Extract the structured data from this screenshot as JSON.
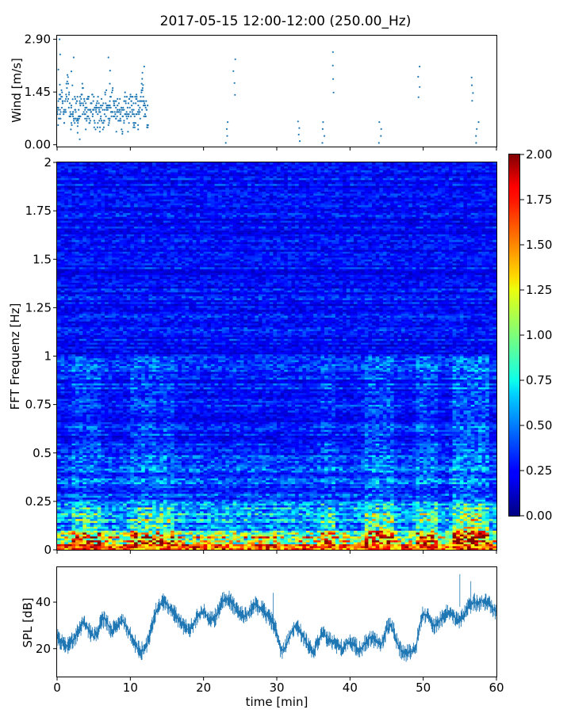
{
  "title": "2017-05-15 12:00-12:00 (250.00_Hz)",
  "chart_data": [
    {
      "type": "scatter",
      "name": "wind",
      "ylabel": "Wind [m/s]",
      "xlim": [
        0,
        60
      ],
      "ylim": [
        -0.05,
        3.0
      ],
      "yticks": [
        0.0,
        1.45,
        2.9
      ],
      "ytick_labels": [
        "0.00",
        "1.45",
        "2.90"
      ],
      "x_start": 0,
      "x_step": 0.1,
      "shape": [
        0.75,
        0.8,
        0.95,
        1.05,
        1.0,
        1.0,
        1.1,
        1.15,
        1.05,
        0.95,
        0.8,
        0.95,
        1.3,
        1.55,
        1.6,
        1.45,
        1.3,
        1.15,
        1.0,
        0.85,
        0.75,
        0.7,
        0.75,
        0.85,
        0.95,
        1.0,
        1.05,
        1.0,
        0.95,
        0.9,
        0.95,
        1.0,
        1.1,
        1.2,
        1.3,
        1.25,
        1.15,
        1.0,
        0.9,
        0.8,
        0.85,
        1.0,
        1.1,
        1.05,
        0.95,
        0.85,
        0.9,
        1.05,
        1.15,
        1.05,
        0.95,
        0.85,
        0.75,
        0.7,
        0.75,
        0.85,
        0.9,
        0.8,
        0.75,
        0.8,
        0.95,
        1.0,
        0.95,
        0.85,
        0.9,
        1.0,
        1.1,
        1.15,
        1.1,
        1.0,
        0.85,
        0.75,
        0.8,
        0.95,
        1.1,
        1.2,
        1.15,
        1.0,
        0.9,
        0.8,
        0.75,
        0.8,
        0.9,
        1.0,
        1.05,
        1.0,
        0.9,
        0.8,
        0.7,
        0.65,
        0.7,
        0.85,
        1.0,
        1.1,
        1.05,
        0.95,
        0.85,
        0.8,
        0.85,
        0.9,
        1.0,
        1.05,
        1.0,
        0.9,
        0.8,
        0.75,
        0.85,
        0.95,
        1.0,
        0.95,
        0.85,
        0.75,
        0.7,
        0.8,
        0.95,
        1.15,
        1.35,
        1.5,
        1.4,
        1.2,
        1.05,
        0.95,
        0.9,
        0.85,
        0.9
      ],
      "spread": 0.42,
      "points_per_step": 3,
      "peaks": [
        {
          "x": 0.3,
          "y": 2.9
        },
        {
          "x": 2.1,
          "y": 2.4
        },
        {
          "x": 7.2,
          "y": 2.4
        },
        {
          "x": 11.8,
          "y": 2.15
        },
        {
          "x": 24.2,
          "y": 2.35
        },
        {
          "x": 37.6,
          "y": 2.55
        },
        {
          "x": 49.5,
          "y": 2.15
        },
        {
          "x": 56.8,
          "y": 1.85
        }
      ],
      "dips": [
        {
          "x": 3.0,
          "y": 0.15
        },
        {
          "x": 23.2,
          "y": 0.05
        },
        {
          "x": 33.0,
          "y": 0.1
        },
        {
          "x": 36.4,
          "y": 0.05
        },
        {
          "x": 44.1,
          "y": 0.05
        },
        {
          "x": 57.4,
          "y": 0.05
        }
      ],
      "color": "#1f77b4"
    },
    {
      "type": "heatmap",
      "name": "spectrogram",
      "ylabel": "FFT Frequenz [Hz]",
      "xlim": [
        0,
        60
      ],
      "ylim": [
        0,
        2
      ],
      "yticks": [
        0,
        0.25,
        0.5,
        0.75,
        1,
        1.25,
        1.5,
        1.75,
        2
      ],
      "ytick_labels": [
        "0",
        "0.25",
        "0.5",
        "0.75",
        "1",
        "1.25",
        "1.5",
        "1.75",
        "2"
      ],
      "colormap": "jet",
      "clim": [
        0,
        2
      ],
      "colorbar_ticks": [
        0,
        0.25,
        0.5,
        0.75,
        1.0,
        1.25,
        1.5,
        1.75,
        2.0
      ],
      "colorbar_tick_labels": [
        "0.00",
        "0.25",
        "0.50",
        "0.75",
        "1.00",
        "1.25",
        "1.50",
        "1.75",
        "2.00"
      ],
      "n_time_bins": 120,
      "n_freq_bins": 200,
      "freq_bands": [
        {
          "f_max": 0.02,
          "level": 1.6
        },
        {
          "f_max": 0.1,
          "level": 0.95
        },
        {
          "f_max": 0.25,
          "level": 0.55
        },
        {
          "f_max": 0.5,
          "level": 0.35
        },
        {
          "f_max": 1.0,
          "level": 0.28
        },
        {
          "f_max": 2.0,
          "level": 0.25
        }
      ],
      "hot_time_ranges": [
        {
          "x0": 2,
          "x1": 6,
          "level": 0.3
        },
        {
          "x0": 10,
          "x1": 16,
          "level": 0.35
        },
        {
          "x0": 36,
          "x1": 38,
          "level": 0.3
        },
        {
          "x0": 42,
          "x1": 46,
          "level": 0.45
        },
        {
          "x0": 49,
          "x1": 52,
          "level": 0.4
        },
        {
          "x0": 54,
          "x1": 59,
          "level": 0.55
        }
      ]
    },
    {
      "type": "line",
      "name": "spl",
      "ylabel": "SPL [dB]",
      "xlabel": "time [min]",
      "xlim": [
        0,
        60
      ],
      "ylim": [
        8,
        55
      ],
      "yticks": [
        20,
        40
      ],
      "ytick_labels": [
        "20",
        "40"
      ],
      "xticks": [
        0,
        10,
        20,
        30,
        40,
        50,
        60
      ],
      "xtick_labels": [
        "0",
        "10",
        "20",
        "30",
        "40",
        "50",
        "60"
      ],
      "x_start": 0,
      "x_step": 0.5,
      "values": [
        25,
        23,
        22,
        21,
        23,
        25,
        28,
        31,
        30,
        27,
        25,
        27,
        32,
        33,
        30,
        28,
        29,
        31,
        32,
        29,
        26,
        23,
        20,
        19,
        20,
        24,
        30,
        36,
        39,
        40,
        39,
        37,
        35,
        33,
        31,
        29,
        28,
        30,
        33,
        35,
        36,
        34,
        32,
        33,
        36,
        40,
        42,
        41,
        39,
        37,
        35,
        34,
        35,
        37,
        39,
        38,
        37,
        35,
        33,
        31,
        27,
        20,
        19,
        23,
        27,
        30,
        28,
        26,
        23,
        20,
        18,
        22,
        25,
        26,
        24,
        23,
        22,
        21,
        20,
        22,
        23,
        22,
        20,
        20,
        22,
        24,
        25,
        23,
        22,
        23,
        28,
        30,
        27,
        22,
        19,
        18,
        18,
        19,
        20,
        30,
        35,
        34,
        32,
        30,
        31,
        33,
        35,
        36,
        34,
        33,
        32,
        34,
        37,
        39,
        40,
        39,
        41,
        40,
        39,
        37,
        36
      ],
      "noise": 4.0,
      "color": "#1f77b4"
    }
  ]
}
